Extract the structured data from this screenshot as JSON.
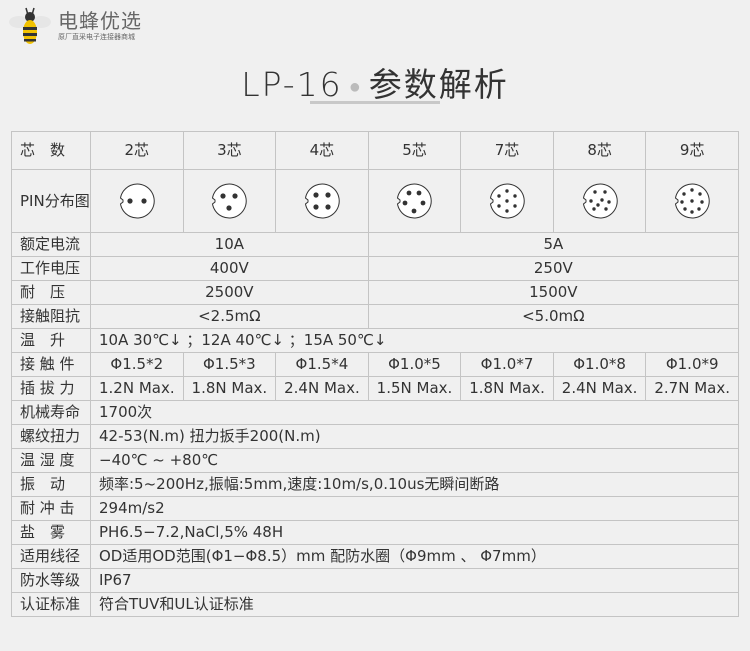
{
  "logo": {
    "brand": "电蜂优选",
    "slogan": "原厂直采电子连接器商城"
  },
  "title": {
    "model": "LP-16",
    "subtitle": "参数解析"
  },
  "table": {
    "header": {
      "label": "芯　数",
      "cores": [
        "2芯",
        "3芯",
        "4芯",
        "5芯",
        "7芯",
        "8芯",
        "9芯"
      ]
    },
    "pin_row": {
      "label": "PIN分布图",
      "pin_counts": [
        2,
        3,
        4,
        5,
        7,
        8,
        9
      ]
    },
    "rated_current": {
      "label": "额定电流",
      "values": [
        "10A",
        "5A"
      ]
    },
    "working_voltage": {
      "label": "工作电压",
      "values": [
        "400V",
        "250V"
      ]
    },
    "withstand_voltage": {
      "label": "耐　压",
      "values": [
        "2500V",
        "1500V"
      ]
    },
    "contact_resistance": {
      "label": "接触阻抗",
      "values": [
        "<2.5mΩ",
        "<5.0mΩ"
      ]
    },
    "temp_rise": {
      "label": "温　升",
      "value": "10A  30℃↓ ；12A  40℃↓ ；15A  50℃↓"
    },
    "contacts": {
      "label": "接 触 件",
      "values": [
        "Φ1.5*2",
        "Φ1.5*3",
        "Φ1.5*4",
        "Φ1.0*5",
        "Φ1.0*7",
        "Φ1.0*8",
        "Φ1.0*9"
      ]
    },
    "insertion_force": {
      "label": "插 拔 力",
      "values": [
        "1.2N Max.",
        "1.8N Max.",
        "2.4N Max.",
        "1.5N Max.",
        "1.8N Max.",
        "2.4N Max.",
        "2.7N Max."
      ]
    },
    "rows": [
      {
        "label": "机械寿命",
        "value": "1700次"
      },
      {
        "label": "螺纹扭力",
        "value": "42-53(N.m)  扭力扳手200(N.m)"
      },
      {
        "label": "温 湿 度",
        "value": "−40℃ ~ +80℃"
      },
      {
        "label": "振　动",
        "value": "频率:5~200Hz,振幅:5mm,速度:10m/s,0.10us无瞬间断路"
      },
      {
        "label": "耐 冲 击",
        "value": "294m/s2"
      },
      {
        "label": "盐　雾",
        "value": "PH6.5−7.2,NaCl,5% 48H"
      },
      {
        "label": "适用线径",
        "value": "OD适用OD范围(Φ1−Φ8.5）mm   配防水圈（Φ9mm  、 Φ7mm）"
      },
      {
        "label": "防水等级",
        "value": "IP67"
      },
      {
        "label": "认证标准",
        "value": "符合TUV和UL认证标准"
      }
    ]
  }
}
